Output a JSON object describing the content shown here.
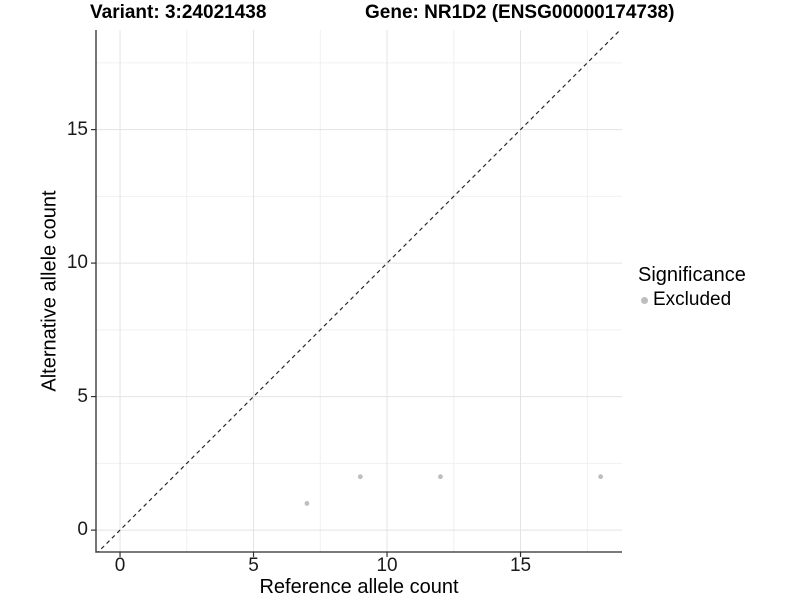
{
  "header": {
    "title_left": "Variant: 3:24021438",
    "title_right": "Gene: NR1D2 (ENSG00000174738)"
  },
  "chart_data": {
    "type": "scatter",
    "title": "Variant: 3:24021438   Gene: NR1D2 (ENSG00000174738)",
    "xlabel": "Reference allele count",
    "ylabel": "Alternative allele count",
    "xlim": [
      -0.9,
      18.8
    ],
    "ylim": [
      -0.82,
      18.73
    ],
    "x_ticks": [
      0,
      5,
      10,
      15
    ],
    "y_ticks": [
      0,
      5,
      10,
      15
    ],
    "x_minor_ticks": [
      2.5,
      7.5,
      12.5,
      17.5
    ],
    "y_minor_ticks": [
      2.5,
      7.5,
      12.5,
      17.5
    ],
    "grid": true,
    "identity_line": {
      "slope": 1,
      "intercept": 0,
      "style": "dashed",
      "color": "#2a2a2a"
    },
    "series": [
      {
        "name": "Excluded",
        "color": "#bebebe",
        "marker": "circle",
        "points": [
          [
            7,
            1
          ],
          [
            9,
            2
          ],
          [
            12,
            2
          ],
          [
            18,
            2
          ]
        ]
      }
    ],
    "legend": {
      "title": "Significance",
      "position": "right",
      "entries": [
        {
          "label": "Excluded",
          "color": "#bebebe"
        }
      ]
    },
    "colors": {
      "grid_major": "#e3e3e3",
      "grid_minor": "#f0f0f0",
      "axis_line": "#2b2b2b",
      "tick_mark": "#333333",
      "background": "#ffffff"
    }
  }
}
